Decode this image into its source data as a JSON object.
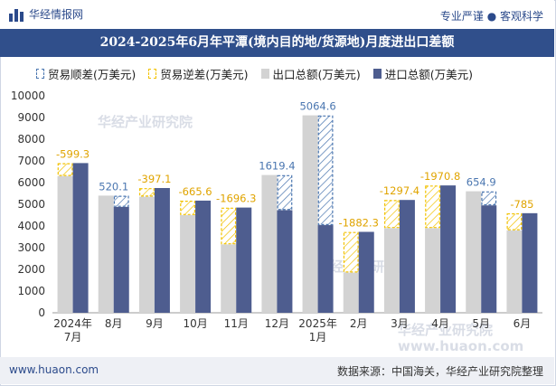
{
  "header": {
    "brand": "华经情报网",
    "tagline": "专业严谨 ● 客观科学",
    "title": "2024-2025年6月年平潭(境内目的地/货源地)月度进出口差额"
  },
  "legend": [
    {
      "label": "贸易顺差(万美元)",
      "key": "surplus"
    },
    {
      "label": "贸易逆差(万美元)",
      "key": "deficit"
    },
    {
      "label": "出口总额(万美元)",
      "key": "export"
    },
    {
      "label": "进口总额(万美元)",
      "key": "import"
    }
  ],
  "watermarks": [
    "华经产业研究院",
    "www.huaon.com"
  ],
  "footer": {
    "url": "www.huaon.com",
    "source": "数据来源：中国海关，华经产业研究院整理"
  },
  "colors": {
    "export": "#d3d3d3",
    "import": "#4e5d8f",
    "surplus_edge": "#4a76b0",
    "deficit_edge": "#f2c200",
    "title_bg": "#304f8b"
  },
  "chart_data": {
    "type": "bar",
    "categories": [
      "2024年\n7月",
      "8月",
      "9月",
      "10月",
      "11月",
      "12月",
      "2025年\n1月",
      "2月",
      "3月",
      "4月",
      "5月",
      "6月"
    ],
    "ylim": [
      0,
      10000
    ],
    "yticks": [
      0,
      1000,
      2000,
      3000,
      4000,
      5000,
      6000,
      7000,
      8000,
      9000,
      10000
    ],
    "series": [
      {
        "name": "出口总额(万美元)",
        "key": "export",
        "values": [
          6300,
          5400,
          5350,
          4500,
          3150,
          6350,
          9100,
          1850,
          3900,
          3900,
          5600,
          3800
        ]
      },
      {
        "name": "进口总额(万美元)",
        "key": "import",
        "values": [
          6900,
          4880,
          5750,
          5170,
          4850,
          4730,
          4040,
          3730,
          5200,
          5870,
          4950,
          4590
        ]
      }
    ],
    "balance_labels": [
      "-599.3",
      "520.1",
      "-397.1",
      "-665.6",
      "-1696.3",
      "1619.4",
      "5064.6",
      "-1882.3",
      "-1297.4",
      "-1970.8",
      "654.9",
      "-785"
    ]
  }
}
